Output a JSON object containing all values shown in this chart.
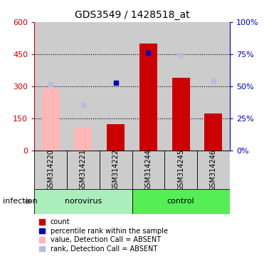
{
  "title": "GDS3549 / 1428518_at",
  "samples": [
    "GSM314220",
    "GSM314221",
    "GSM314222",
    "GSM314244",
    "GSM314245",
    "GSM314246"
  ],
  "groups": [
    "norovirus",
    "norovirus",
    "norovirus",
    "control",
    "control",
    "control"
  ],
  "bar_colors_present": "#CC0000",
  "bar_colors_absent": "#FFB6B6",
  "count_present": [
    null,
    null,
    125,
    500,
    340,
    175
  ],
  "count_absent": [
    290,
    110,
    null,
    null,
    null,
    null
  ],
  "pct_present": [
    null,
    null,
    315,
    455,
    null,
    null
  ],
  "pct_absent": [
    310,
    215,
    null,
    null,
    445,
    325
  ],
  "ylim_left": [
    0,
    600
  ],
  "ylim_right": [
    0,
    100
  ],
  "yticks_left": [
    0,
    150,
    300,
    450,
    600
  ],
  "yticks_right": [
    0,
    25,
    50,
    75,
    100
  ],
  "left_tick_labels": [
    "0",
    "150",
    "300",
    "450",
    "600"
  ],
  "right_tick_labels": [
    "0%",
    "25%",
    "50%",
    "75%",
    "100%"
  ],
  "left_color": "#CC0000",
  "right_color": "#0000BB",
  "group_label": "infection",
  "norovirus_color": "#AAEEBB",
  "control_color": "#55EE55",
  "sample_bg": "#CCCCCC",
  "dotted_lines": [
    150,
    300,
    450
  ],
  "legend_items": [
    {
      "label": "count",
      "color": "#CC0000"
    },
    {
      "label": "percentile rank within the sample",
      "color": "#0000BB"
    },
    {
      "label": "value, Detection Call = ABSENT",
      "color": "#FFB6B6"
    },
    {
      "label": "rank, Detection Call = ABSENT",
      "color": "#BBBBDD"
    }
  ]
}
